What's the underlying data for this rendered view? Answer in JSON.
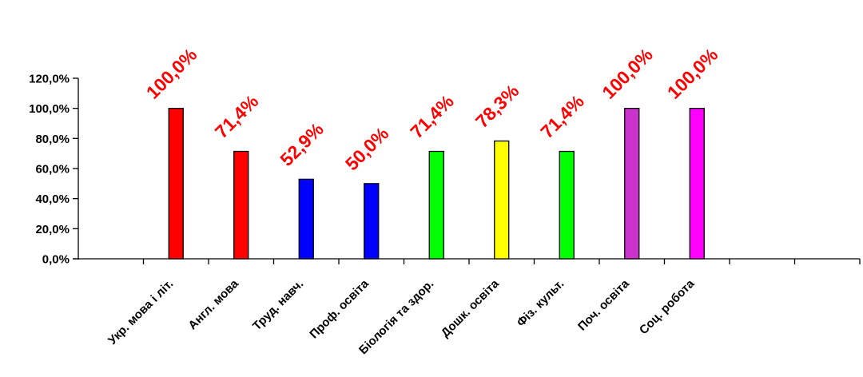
{
  "chart_data": {
    "type": "bar",
    "categories": [
      "Укр. мова і літ.",
      "Англ. мова",
      "Труд. навч.",
      "Проф. освіта",
      "Біологія та здор.",
      "Дошк. освіта",
      "Фіз. культ.",
      "Поч. освіта",
      "Соц. робота"
    ],
    "values": [
      100.0,
      71.4,
      52.9,
      50.0,
      71.4,
      78.3,
      71.4,
      100.0,
      100.0
    ],
    "data_labels": [
      "100,0%",
      "71,4%",
      "52,9%",
      "50,0%",
      "71,4%",
      "78,3%",
      "71,4%",
      "100,0%",
      "100,0%"
    ],
    "bar_colors": [
      "#ff0000",
      "#ff0000",
      "#0000ff",
      "#0000ff",
      "#00ff00",
      "#ffff00",
      "#00ff00",
      "#cc33cc",
      "#ff00ff"
    ],
    "ylim": [
      0,
      120
    ],
    "yticks": [
      0,
      20,
      40,
      60,
      80,
      100,
      120
    ],
    "ytick_labels": [
      "0,0%",
      "20,0%",
      "40,0%",
      "60,0%",
      "80,0%",
      "100,0%",
      "120,0%"
    ],
    "category_slots": 12,
    "grid": false,
    "legend": "none",
    "label_color": "#ff0000",
    "title": "",
    "xlabel": "",
    "ylabel": ""
  }
}
